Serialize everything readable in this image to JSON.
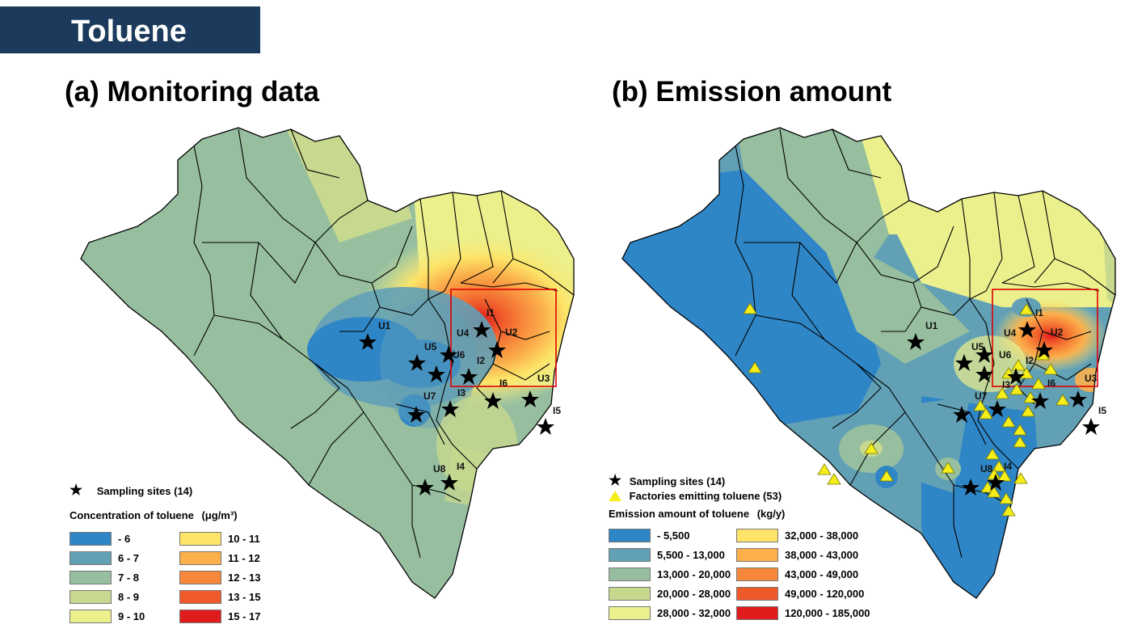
{
  "banner": {
    "title": "Toluene"
  },
  "panel_a": {
    "title": "(a) Monitoring data",
    "legend": {
      "sites_label": "Sampling sites (14)",
      "heading": "Concentration of toluene",
      "unit": "(μg/m³)",
      "classes": [
        {
          "label": " - 6",
          "color": "#2f86c6"
        },
        {
          "label": "6 - 7",
          "color": "#62a0b6"
        },
        {
          "label": "7 - 8",
          "color": "#97bf9f"
        },
        {
          "label": "8 - 9",
          "color": "#c7d88f"
        },
        {
          "label": "9 - 10",
          "color": "#ecf08c"
        },
        {
          "label": "10 - 11",
          "color": "#fde468"
        },
        {
          "label": "11 - 12",
          "color": "#fbb04c"
        },
        {
          "label": "12 - 13",
          "color": "#f7873a"
        },
        {
          "label": "13 - 15",
          "color": "#ef5a2a"
        },
        {
          "label": "15 - 17",
          "color": "#e01b1b"
        }
      ]
    },
    "sites": [
      "U1",
      "U2",
      "U4",
      "U5",
      "U6",
      "U7",
      "U8",
      "I1",
      "I2",
      "I3",
      "I4",
      "I5",
      "I6",
      "U3"
    ]
  },
  "panel_b": {
    "title": "(b) Emission amount",
    "legend": {
      "sites_label": "Sampling sites (14)",
      "factories_label": "Factories emitting toluene (53)",
      "heading": "Emission amount of toluene",
      "unit": "(kg/y)",
      "classes": [
        {
          "label": " - 5,500",
          "color": "#2f86c6"
        },
        {
          "label": "5,500 - 13,000",
          "color": "#62a0b6"
        },
        {
          "label": "13,000 - 20,000",
          "color": "#97bf9f"
        },
        {
          "label": "20,000 - 28,000",
          "color": "#c7d88f"
        },
        {
          "label": "28,000 - 32,000",
          "color": "#ecf08c"
        },
        {
          "label": "32,000 - 38,000",
          "color": "#fde468"
        },
        {
          "label": "38,000 - 43,000",
          "color": "#fbb04c"
        },
        {
          "label": "43,000 - 49,000",
          "color": "#f7873a"
        },
        {
          "label": "49,000 - 120,000",
          "color": "#ef5a2a"
        },
        {
          "label": "120,000 - 185,000",
          "color": "#e01b1b"
        }
      ]
    },
    "sites": [
      "U1",
      "U2",
      "U4",
      "U5",
      "U6",
      "U7",
      "U8",
      "I1",
      "I2",
      "I3",
      "I4",
      "I5",
      "I6",
      "U3"
    ]
  }
}
